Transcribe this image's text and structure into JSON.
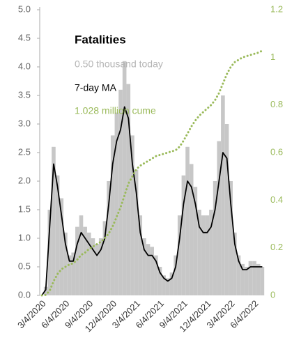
{
  "chart_data": {
    "type": "bar",
    "title": "Fatalities",
    "categories": [
      "3/4/2020",
      null,
      null,
      null,
      null,
      null,
      "6/4/2020",
      null,
      null,
      null,
      null,
      null,
      "9/4/2020",
      null,
      null,
      null,
      null,
      null,
      "12/4/2020",
      null,
      null,
      null,
      null,
      null,
      "3/4/2021",
      null,
      null,
      null,
      null,
      null,
      "6/4/2021",
      null,
      null,
      null,
      null,
      null,
      "9/4/2021",
      null,
      null,
      null,
      null,
      null,
      "12/4/2021",
      null,
      null,
      null,
      null,
      null,
      "3/4/2022",
      null,
      null,
      null,
      null,
      null,
      "6/4/2022",
      null,
      null
    ],
    "series": [
      {
        "name": "0.50 thousand today",
        "color": "#b4b4b4",
        "type": "bar",
        "values": [
          0,
          0.15,
          1.5,
          2.6,
          2.1,
          1.7,
          1.1,
          0.7,
          0.75,
          1.2,
          1.4,
          1.2,
          1.1,
          1.0,
          0.9,
          1.0,
          1.3,
          2.0,
          2.8,
          3.2,
          3.6,
          4.1,
          3.7,
          2.8,
          2.2,
          1.4,
          1.0,
          0.9,
          0.85,
          0.7,
          0.5,
          0.35,
          0.3,
          0.4,
          0.7,
          1.4,
          2.1,
          2.6,
          2.3,
          1.9,
          1.5,
          1.4,
          1.4,
          1.5,
          2.0,
          2.7,
          3.5,
          3.0,
          2.0,
          1.1,
          0.7,
          0.55,
          0.5,
          0.6,
          0.6,
          0.55,
          0.5
        ]
      },
      {
        "name": "7-day MA",
        "color": "#000000",
        "type": "line",
        "values": [
          0,
          0.1,
          1.2,
          2.3,
          1.9,
          1.4,
          0.9,
          0.6,
          0.6,
          0.9,
          1.1,
          1.0,
          0.9,
          0.8,
          0.7,
          0.8,
          1.0,
          1.6,
          2.3,
          2.7,
          2.9,
          3.3,
          3.1,
          2.3,
          1.8,
          1.1,
          0.8,
          0.7,
          0.7,
          0.6,
          0.4,
          0.3,
          0.25,
          0.3,
          0.5,
          1.0,
          1.6,
          2.0,
          1.9,
          1.6,
          1.2,
          1.1,
          1.1,
          1.2,
          1.5,
          2.0,
          2.5,
          2.4,
          1.6,
          0.9,
          0.6,
          0.45,
          0.45,
          0.5,
          0.5,
          0.5,
          0.5
        ]
      },
      {
        "name": "1.028 million cume",
        "color": "#9aba5a",
        "type": "dotted",
        "axis": "y2",
        "values": [
          0,
          0.002,
          0.02,
          0.06,
          0.09,
          0.11,
          0.12,
          0.13,
          0.135,
          0.15,
          0.17,
          0.18,
          0.195,
          0.205,
          0.215,
          0.225,
          0.24,
          0.26,
          0.29,
          0.33,
          0.37,
          0.42,
          0.47,
          0.5,
          0.53,
          0.545,
          0.555,
          0.565,
          0.575,
          0.585,
          0.59,
          0.595,
          0.6,
          0.605,
          0.61,
          0.625,
          0.65,
          0.68,
          0.71,
          0.735,
          0.755,
          0.77,
          0.785,
          0.8,
          0.82,
          0.85,
          0.89,
          0.93,
          0.96,
          0.98,
          0.99,
          1.0,
          1.005,
          1.01,
          1.015,
          1.02,
          1.028
        ]
      }
    ],
    "ylim": [
      0,
      5
    ],
    "yticks": [
      {
        "value": 0,
        "label": "0.0"
      },
      0.5,
      {
        "value": 1,
        "label": "1.0"
      },
      1.5,
      {
        "value": 2,
        "label": "2.0"
      },
      2.5,
      {
        "value": 3,
        "label": "3.0"
      },
      3.5,
      {
        "value": 4,
        "label": "4.0"
      },
      4.5,
      {
        "value": 5,
        "label": "5.0"
      }
    ],
    "y2lim": [
      0,
      1.2
    ],
    "y2ticks": [
      0,
      0.2,
      0.4,
      0.6,
      0.8,
      1,
      1.2
    ],
    "y2color": "#9aba5a",
    "grid": false
  }
}
